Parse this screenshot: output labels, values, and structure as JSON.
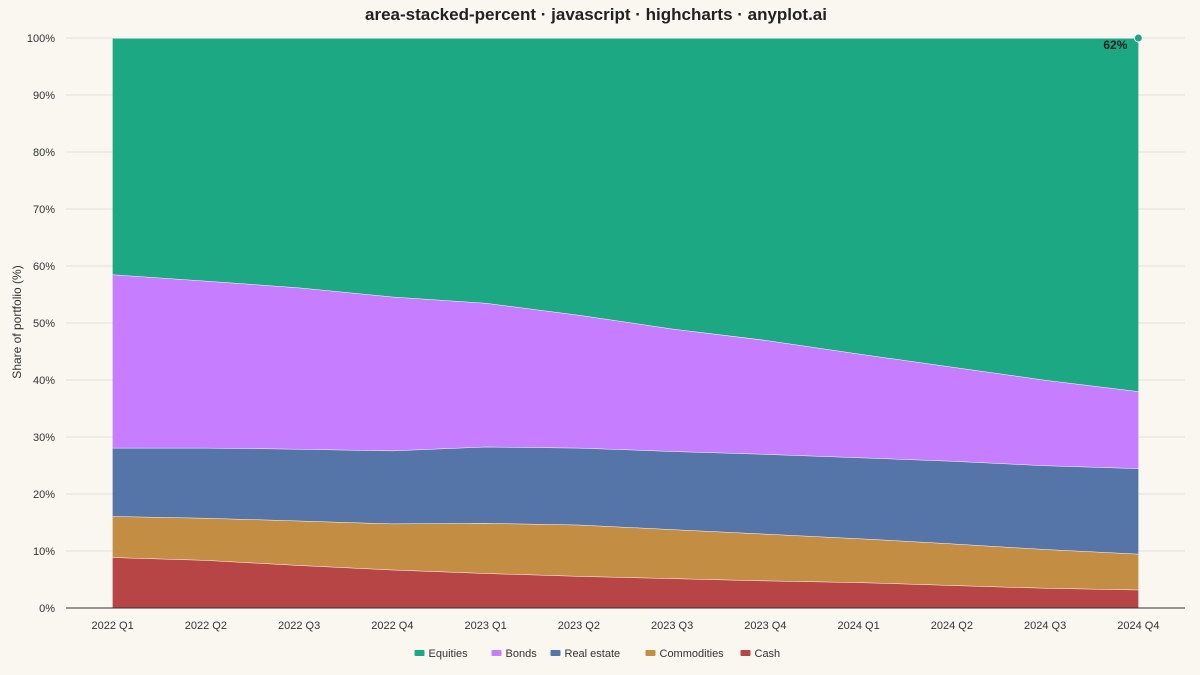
{
  "chart_data": {
    "type": "area",
    "stacking": "percent",
    "title": "area-stacked-percent · javascript · highcharts · anyplot.ai",
    "ylabel": "Share of portfolio (%)",
    "xlabel": "",
    "ylim": [
      0,
      100
    ],
    "yticks": [
      0,
      10,
      20,
      30,
      40,
      50,
      60,
      70,
      80,
      90,
      100
    ],
    "ytick_labels": [
      "0%",
      "10%",
      "20%",
      "30%",
      "40%",
      "50%",
      "60%",
      "70%",
      "80%",
      "90%",
      "100%"
    ],
    "grid": true,
    "legend_position": "bottom-center",
    "categories": [
      "2022 Q1",
      "2022 Q2",
      "2022 Q3",
      "2022 Q4",
      "2023 Q1",
      "2023 Q2",
      "2023 Q3",
      "2023 Q4",
      "2024 Q1",
      "2024 Q2",
      "2024 Q3",
      "2024 Q4"
    ],
    "series": [
      {
        "name": "Equities",
        "color": "#1BA882",
        "values": [
          41.5,
          42.6,
          43.8,
          45.4,
          46.5,
          48.6,
          51.0,
          53.0,
          55.4,
          57.7,
          60.0,
          62.0
        ]
      },
      {
        "name": "Bonds",
        "color": "#C77DFF",
        "values": [
          30.4,
          29.3,
          28.3,
          27.0,
          25.2,
          23.3,
          21.5,
          20.0,
          18.2,
          16.5,
          15.0,
          13.5
        ]
      },
      {
        "name": "Real estate",
        "color": "#5574A8",
        "values": [
          12.0,
          12.3,
          12.6,
          12.8,
          13.4,
          13.5,
          13.7,
          14.0,
          14.2,
          14.5,
          14.7,
          15.0
        ]
      },
      {
        "name": "Commodities",
        "color": "#C38E44",
        "values": [
          7.2,
          7.4,
          7.8,
          8.1,
          8.8,
          9.0,
          8.6,
          8.2,
          7.7,
          7.3,
          6.8,
          6.3
        ]
      },
      {
        "name": "Cash",
        "color": "#B84545",
        "values": [
          8.9,
          8.4,
          7.5,
          6.7,
          6.1,
          5.6,
          5.2,
          4.8,
          4.5,
          4.0,
          3.5,
          3.2
        ]
      }
    ],
    "annotation": {
      "series": "Equities",
      "category": "2024 Q4",
      "label": "62%"
    }
  }
}
